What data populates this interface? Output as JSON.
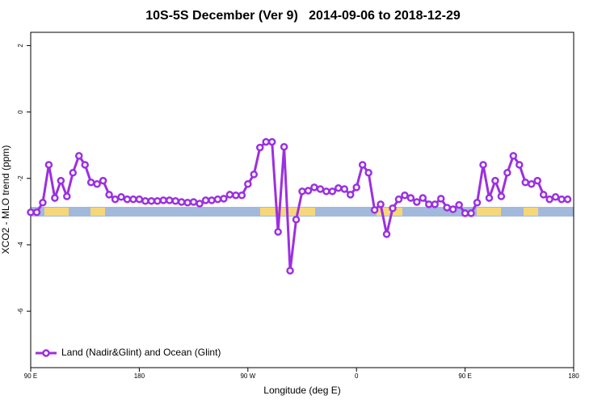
{
  "chart_data": {
    "type": "line",
    "title": "10S-5S December (Ver 9)   2014-09-06 to 2018-12-29",
    "xlabel": "Longitude (deg E)",
    "ylabel": "XCO2 - MLO trend (ppm)",
    "xlim": [
      90,
      540
    ],
    "ylim": [
      -7.7,
      2.4
    ],
    "xticks": [
      {
        "value": 90,
        "label": "90 E"
      },
      {
        "value": 180,
        "label": "180"
      },
      {
        "value": 270,
        "label": "90 W"
      },
      {
        "value": 360,
        "label": "0"
      },
      {
        "value": 450,
        "label": "90 E"
      },
      {
        "value": 540,
        "label": "180"
      }
    ],
    "yticks": [
      -6,
      -4,
      -2,
      0,
      2
    ],
    "legend": "bottom-left",
    "x": [
      90,
      95,
      100,
      105,
      110,
      115,
      120,
      125,
      130,
      135,
      140,
      145,
      150,
      155,
      160,
      165,
      170,
      175,
      180,
      185,
      190,
      195,
      200,
      205,
      210,
      215,
      220,
      225,
      230,
      235,
      240,
      245,
      250,
      255,
      260,
      265,
      270,
      275,
      280,
      285,
      290,
      295,
      300,
      305,
      310,
      315,
      320,
      325,
      330,
      335,
      340,
      345,
      350,
      355,
      360,
      365,
      370,
      375,
      380,
      385,
      390,
      395,
      400,
      405,
      410,
      415,
      420,
      425,
      430,
      435,
      440,
      445,
      450,
      455,
      460,
      465,
      470,
      475,
      480,
      485,
      490,
      495,
      500,
      505,
      510,
      515,
      520,
      525,
      530,
      535
    ],
    "series": [
      {
        "name": "Land (Nadir&Glint) and Ocean (Glint)",
        "color": "#9b30e0",
        "values": [
          -3.02,
          -3.02,
          -2.73,
          -1.59,
          -2.59,
          -2.07,
          -2.54,
          -1.83,
          -1.32,
          -1.59,
          -2.12,
          -2.17,
          -2.07,
          -2.49,
          -2.63,
          -2.56,
          -2.63,
          -2.63,
          -2.63,
          -2.68,
          -2.68,
          -2.68,
          -2.66,
          -2.66,
          -2.68,
          -2.71,
          -2.73,
          -2.71,
          -2.76,
          -2.66,
          -2.66,
          -2.63,
          -2.61,
          -2.49,
          -2.51,
          -2.51,
          -2.17,
          -1.88,
          -1.07,
          -0.9,
          -0.9,
          -3.61,
          -1.05,
          -4.78,
          -3.24,
          -2.39,
          -2.37,
          -2.27,
          -2.32,
          -2.39,
          -2.39,
          -2.29,
          -2.32,
          -2.49,
          -2.27,
          -1.59,
          -1.83,
          -2.95,
          -2.78,
          -3.68,
          -2.9,
          -2.63,
          -2.51,
          -2.59,
          -2.71,
          -2.59,
          -2.78,
          -2.78,
          -2.61,
          -2.88,
          -2.93,
          -2.8,
          -3.05,
          -3.05,
          -2.73,
          -1.59,
          -2.59,
          -2.07,
          -2.54,
          -1.83,
          -1.32,
          -1.59,
          -2.12,
          -2.17,
          -2.07,
          -2.49,
          -2.63,
          -2.56,
          -2.63,
          -2.63
        ]
      }
    ]
  }
}
